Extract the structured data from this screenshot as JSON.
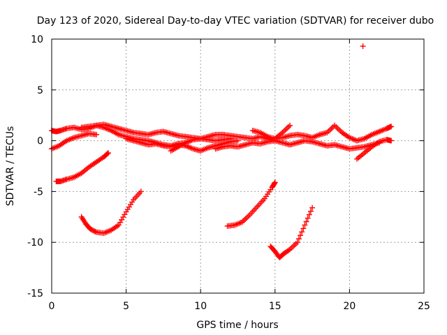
{
  "chart_data": {
    "type": "scatter",
    "title": "Day 123 of 2020, Sidereal Day-to-day VTEC variation (SDTVAR) for receiver dubo",
    "xlabel": "GPS time / hours",
    "ylabel": "SDTVAR / TECUs",
    "xlim": [
      0,
      25
    ],
    "ylim": [
      -15,
      10
    ],
    "xticks": [
      0,
      5,
      10,
      15,
      20,
      25
    ],
    "yticks": [
      -15,
      -10,
      -5,
      0,
      5,
      10
    ],
    "xtick_labels": [
      "0",
      "5",
      "10",
      "15",
      "20",
      "25"
    ],
    "ytick_labels": [
      "-15",
      "-10",
      "-5",
      "0",
      "5",
      "10"
    ],
    "grid": true,
    "marker": "+",
    "marker_color": "#ff0000",
    "series": [
      {
        "name": "arc-top-1",
        "x": [
          0.0,
          0.3,
          0.6,
          1.0,
          1.5,
          2.0,
          2.5,
          3.0,
          3.5,
          4.0,
          4.5,
          5.0,
          5.5,
          6.0,
          6.5,
          7.0,
          7.5,
          8.0,
          8.5,
          9.0,
          9.5,
          10.0,
          10.5,
          11.0,
          11.5,
          12.0
        ],
        "y": [
          1.0,
          0.9,
          1.0,
          1.2,
          1.3,
          1.1,
          1.2,
          1.5,
          1.6,
          1.4,
          1.2,
          1.0,
          0.8,
          0.7,
          0.6,
          0.8,
          0.9,
          0.7,
          0.5,
          0.4,
          0.3,
          0.2,
          0.1,
          0.0,
          0.1,
          0.2
        ]
      },
      {
        "name": "arc-top-2",
        "x": [
          0.0,
          0.5,
          1.0,
          1.5,
          2.0,
          2.5,
          3.0
        ],
        "y": [
          -0.8,
          -0.5,
          0.0,
          0.3,
          0.5,
          0.7,
          0.6
        ]
      },
      {
        "name": "arc-top-3",
        "x": [
          2.0,
          2.5,
          3.0,
          3.5,
          4.0,
          4.5,
          5.0,
          5.5,
          6.0,
          6.5,
          7.0,
          7.5,
          8.0,
          8.5,
          9.0
        ],
        "y": [
          1.3,
          1.4,
          1.5,
          1.3,
          1.0,
          0.6,
          0.4,
          0.2,
          0.1,
          0.0,
          -0.2,
          -0.4,
          -0.5,
          -0.3,
          -0.2
        ]
      },
      {
        "name": "arc-top-4",
        "x": [
          5.0,
          5.5,
          6.0,
          6.5,
          7.0,
          7.5,
          8.0,
          8.5,
          9.0,
          9.5,
          10.0,
          10.5,
          11.0,
          11.5,
          12.0,
          12.5
        ],
        "y": [
          0.2,
          0.0,
          -0.2,
          -0.4,
          -0.3,
          -0.5,
          -0.6,
          -0.4,
          -0.5,
          -0.8,
          -1.0,
          -0.7,
          -0.5,
          -0.3,
          -0.1,
          0.0
        ]
      },
      {
        "name": "arc-top-5",
        "x": [
          8.0,
          8.5,
          9.0,
          9.5,
          10.0,
          10.5,
          11.0,
          11.5,
          12.0,
          12.5,
          13.0,
          13.5,
          14.0,
          14.5,
          15.0
        ],
        "y": [
          -1.0,
          -0.6,
          -0.2,
          0.1,
          0.2,
          0.4,
          0.6,
          0.6,
          0.5,
          0.4,
          0.3,
          0.2,
          0.4,
          0.2,
          0.0
        ]
      },
      {
        "name": "arc-top-6",
        "x": [
          11.0,
          11.5,
          12.0,
          12.5,
          13.0,
          13.5,
          14.0,
          14.5,
          15.0,
          15.5,
          16.0,
          16.5,
          17.0,
          17.5,
          18.0,
          18.5,
          19.0,
          19.5,
          20.0,
          20.5,
          21.0,
          21.5,
          22.0
        ],
        "y": [
          -0.8,
          -0.6,
          -0.5,
          -0.6,
          -0.4,
          -0.2,
          -0.3,
          -0.1,
          0.0,
          -0.2,
          -0.4,
          -0.2,
          0.0,
          -0.1,
          -0.3,
          -0.5,
          -0.4,
          -0.6,
          -0.8,
          -0.7,
          -0.6,
          -0.4,
          -0.2
        ]
      },
      {
        "name": "arc-top-7",
        "x": [
          13.5,
          14.0,
          14.5,
          15.0,
          15.5,
          16.0
        ],
        "y": [
          1.0,
          0.8,
          0.4,
          0.2,
          0.8,
          1.5
        ]
      },
      {
        "name": "arc-top-8",
        "x": [
          15.0,
          15.5,
          16.0,
          16.5,
          17.0,
          17.5,
          18.0,
          18.5,
          19.0,
          19.5,
          20.0,
          20.5,
          21.0,
          21.5,
          22.0,
          22.5,
          22.8
        ],
        "y": [
          0.2,
          0.3,
          0.5,
          0.6,
          0.5,
          0.3,
          0.6,
          0.8,
          1.5,
          0.8,
          0.3,
          0.0,
          0.2,
          0.6,
          0.9,
          1.2,
          1.4
        ]
      },
      {
        "name": "arc-top-9",
        "x": [
          20.5,
          21.0,
          21.5,
          22.0,
          22.5,
          22.8
        ],
        "y": [
          -1.8,
          -1.2,
          -0.6,
          -0.1,
          0.1,
          0.0
        ]
      },
      {
        "name": "arc-mid-1",
        "x": [
          0.3,
          0.6,
          1.0,
          1.5,
          2.0,
          2.5,
          3.0,
          3.5,
          3.8
        ],
        "y": [
          -4.0,
          -4.0,
          -3.8,
          -3.6,
          -3.2,
          -2.6,
          -2.1,
          -1.6,
          -1.2
        ]
      },
      {
        "name": "arc-low-1",
        "x": [
          2.0,
          2.3,
          2.6,
          3.0,
          3.5,
          4.0,
          4.5,
          5.0,
          5.5,
          6.0
        ],
        "y": [
          -7.5,
          -8.2,
          -8.7,
          -9.0,
          -9.1,
          -8.8,
          -8.3,
          -7.0,
          -5.8,
          -5.0
        ]
      },
      {
        "name": "arc-low-2",
        "x": [
          11.8,
          12.3,
          12.8,
          13.3,
          13.8,
          14.3,
          14.8,
          15.0
        ],
        "y": [
          -8.4,
          -8.3,
          -8.0,
          -7.3,
          -6.5,
          -5.7,
          -4.6,
          -4.1
        ]
      },
      {
        "name": "arc-low-3",
        "x": [
          14.7,
          15.0,
          15.3,
          15.6,
          16.0,
          16.5,
          17.0,
          17.5
        ],
        "y": [
          -10.4,
          -10.9,
          -11.5,
          -11.1,
          -10.7,
          -10.0,
          -8.3,
          -6.6
        ]
      },
      {
        "name": "outlier",
        "x": [
          20.9
        ],
        "y": [
          9.3
        ]
      }
    ]
  }
}
